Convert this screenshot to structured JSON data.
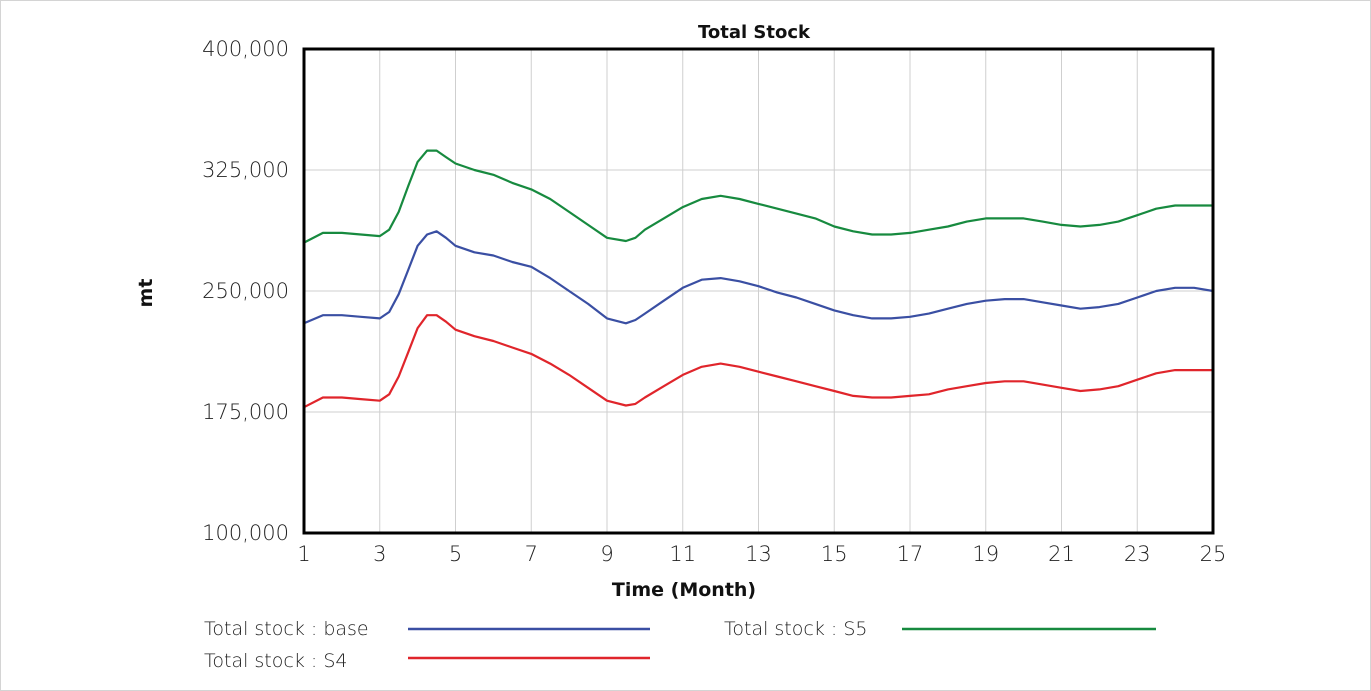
{
  "chart_data": {
    "type": "line",
    "title": "Total Stock",
    "xlabel": "Time (Month)",
    "ylabel": "mt",
    "xlim": [
      1,
      25
    ],
    "ylim": [
      100000,
      400000
    ],
    "x_ticks": [
      "1",
      "3",
      "5",
      "7",
      "9",
      "11",
      "13",
      "15",
      "17",
      "19",
      "21",
      "23",
      "25"
    ],
    "y_ticks": [
      "100,000",
      "175,000",
      "250,000",
      "325,000",
      "400,000"
    ],
    "grid": true,
    "legend_position": "bottom",
    "x": [
      1,
      1.5,
      2,
      2.5,
      3,
      3.25,
      3.5,
      3.75,
      4,
      4.25,
      4.5,
      4.75,
      5,
      5.5,
      6,
      6.5,
      7,
      7.5,
      8,
      8.5,
      9,
      9.5,
      9.75,
      10,
      10.5,
      11,
      11.5,
      12,
      12.5,
      13,
      13.5,
      14,
      14.5,
      15,
      15.5,
      16,
      16.5,
      17,
      17.5,
      18,
      18.5,
      19,
      19.5,
      20,
      20.5,
      21,
      21.5,
      22,
      22.5,
      23,
      23.5,
      24,
      24.5,
      25
    ],
    "series": [
      {
        "name": "Total stock : base",
        "color": "#3a4fa3",
        "values": [
          230000,
          235000,
          235000,
          234000,
          233000,
          237000,
          248000,
          263000,
          278000,
          285000,
          287000,
          283000,
          278000,
          274000,
          272000,
          268000,
          265000,
          258000,
          250000,
          242000,
          233000,
          230000,
          232000,
          236000,
          244000,
          252000,
          257000,
          258000,
          256000,
          253000,
          249000,
          246000,
          242000,
          238000,
          235000,
          233000,
          233000,
          234000,
          236000,
          239000,
          242000,
          244000,
          245000,
          245000,
          243000,
          241000,
          239000,
          240000,
          242000,
          246000,
          250000,
          252000,
          252000,
          250000
        ]
      },
      {
        "name": "Total stock : S4",
        "color": "#e0252b",
        "values": [
          178000,
          184000,
          184000,
          183000,
          182000,
          186000,
          197000,
          212000,
          227000,
          235000,
          235000,
          231000,
          226000,
          222000,
          219000,
          215000,
          211000,
          205000,
          198000,
          190000,
          182000,
          179000,
          180000,
          184000,
          191000,
          198000,
          203000,
          205000,
          203000,
          200000,
          197000,
          194000,
          191000,
          188000,
          185000,
          184000,
          184000,
          185000,
          186000,
          189000,
          191000,
          193000,
          194000,
          194000,
          192000,
          190000,
          188000,
          189000,
          191000,
          195000,
          199000,
          201000,
          201000,
          201000
        ]
      },
      {
        "name": "Total stock : S5",
        "color": "#178a3f",
        "values": [
          280000,
          286000,
          286000,
          285000,
          284000,
          288000,
          299000,
          315000,
          330000,
          337000,
          337000,
          333000,
          329000,
          325000,
          322000,
          317000,
          313000,
          307000,
          299000,
          291000,
          283000,
          281000,
          283000,
          288000,
          295000,
          302000,
          307000,
          309000,
          307000,
          304000,
          301000,
          298000,
          295000,
          290000,
          287000,
          285000,
          285000,
          286000,
          288000,
          290000,
          293000,
          295000,
          295000,
          295000,
          293000,
          291000,
          290000,
          291000,
          293000,
          297000,
          301000,
          303000,
          303000,
          303000
        ]
      }
    ]
  }
}
